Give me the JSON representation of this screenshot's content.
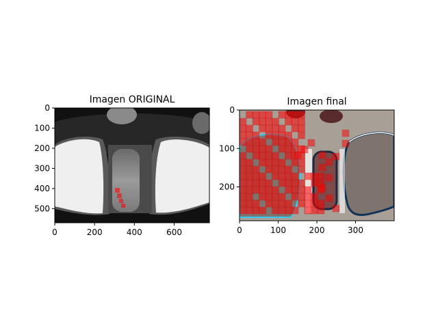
{
  "chart_data": [
    {
      "type": "image",
      "title": "Imagen ORIGINAL",
      "xlim": [
        0,
        777
      ],
      "ylim": [
        570,
        0
      ],
      "xticks": [
        0,
        200,
        400,
        600
      ],
      "yticks": [
        0,
        100,
        200,
        300,
        400,
        500
      ],
      "content": "grayscale radiograph with two bright lobes and a small red highlighted region near the bottom center",
      "highlight_color": "#ff0000"
    },
    {
      "type": "image",
      "title": "Imagen final",
      "xlim": [
        0,
        400
      ],
      "ylim": [
        288,
        0
      ],
      "xticks": [
        0,
        100,
        200,
        300
      ],
      "yticks": [
        0,
        100,
        200
      ],
      "content": "processed color image with many red highlighted square regions concentrated on the left half",
      "highlight_color": "#ff0000"
    }
  ]
}
